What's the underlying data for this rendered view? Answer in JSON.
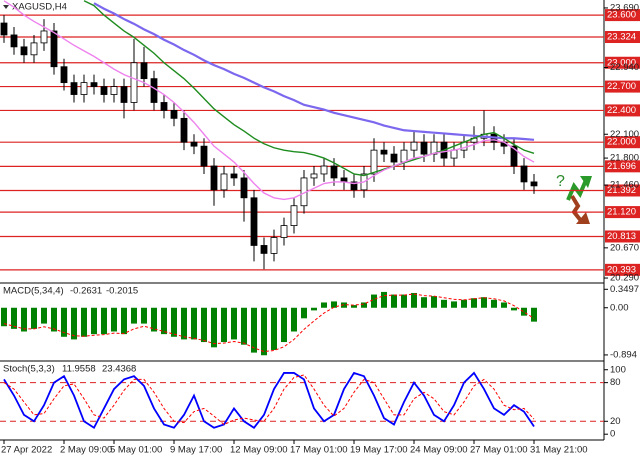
{
  "chart_data": [
    {
      "type": "candlestick",
      "title": "XAGUSD,H4",
      "categories": [
        "27 Apr 2022",
        null,
        null,
        null,
        null,
        null,
        "2 May 09:00",
        null,
        null,
        null,
        null,
        "5 May 01:00",
        null,
        null,
        null,
        null,
        null,
        "9 May 17:00",
        null,
        null,
        null,
        null,
        null,
        "12 May 09:00",
        null,
        null,
        null,
        null,
        null,
        "17 May 01:00",
        null,
        null,
        null,
        null,
        null,
        "19 May 17:00",
        null,
        null,
        null,
        null,
        null,
        "24 May 09:00",
        null,
        null,
        null,
        null,
        null,
        "27 May 01:00",
        null,
        null,
        null,
        null,
        null,
        "31 May 21:00"
      ],
      "open": [
        23.5,
        23.35,
        23.2,
        23.1,
        23.25,
        23.4,
        22.95,
        22.75,
        22.6,
        22.75,
        22.7,
        22.6,
        22.7,
        22.5,
        23.0,
        22.8,
        22.5,
        22.4,
        22.3,
        22.0,
        21.95,
        21.7,
        21.4,
        21.6,
        21.55,
        21.3,
        20.7,
        20.6,
        20.8,
        20.95,
        21.2,
        21.55,
        21.6,
        21.7,
        21.55,
        21.5,
        21.4,
        21.6,
        21.9,
        21.85,
        21.75,
        21.9,
        22.0,
        21.85,
        22.0,
        21.8,
        21.9,
        22.0,
        22.05,
        22.1,
        22.0,
        21.95,
        21.7,
        21.5
      ],
      "high": [
        23.6,
        23.45,
        23.3,
        23.35,
        23.55,
        23.5,
        23.05,
        22.85,
        22.85,
        22.85,
        22.8,
        22.8,
        22.8,
        23.3,
        23.2,
        22.9,
        22.6,
        22.5,
        22.4,
        22.1,
        22.05,
        21.8,
        21.7,
        21.7,
        21.65,
        21.4,
        20.8,
        20.9,
        21.05,
        21.3,
        21.65,
        21.7,
        21.8,
        21.8,
        21.65,
        21.6,
        21.7,
        22.05,
        22.0,
        21.95,
        22.0,
        22.15,
        22.1,
        22.1,
        22.1,
        22.0,
        22.1,
        22.2,
        22.4,
        22.2,
        22.1,
        22.05,
        21.8,
        21.6
      ],
      "low": [
        23.25,
        23.1,
        23.0,
        23.0,
        23.15,
        22.85,
        22.65,
        22.5,
        22.5,
        22.6,
        22.5,
        22.5,
        22.3,
        22.4,
        22.7,
        22.4,
        22.3,
        22.2,
        21.9,
        21.85,
        21.6,
        21.2,
        21.3,
        21.45,
        21.0,
        20.5,
        20.4,
        20.5,
        20.7,
        20.85,
        21.1,
        21.45,
        21.5,
        21.45,
        21.4,
        21.3,
        21.3,
        21.5,
        21.75,
        21.65,
        21.65,
        21.8,
        21.75,
        21.75,
        21.7,
        21.7,
        21.8,
        21.9,
        21.95,
        21.9,
        21.85,
        21.6,
        21.4,
        21.35
      ],
      "close": [
        23.35,
        23.2,
        23.1,
        23.25,
        23.4,
        22.95,
        22.75,
        22.6,
        22.75,
        22.7,
        22.6,
        22.7,
        22.5,
        23.0,
        22.8,
        22.5,
        22.4,
        22.3,
        22.0,
        21.95,
        21.7,
        21.4,
        21.6,
        21.55,
        21.3,
        20.7,
        20.6,
        20.8,
        20.95,
        21.2,
        21.55,
        21.6,
        21.7,
        21.55,
        21.5,
        21.4,
        21.6,
        21.9,
        21.85,
        21.75,
        21.9,
        22.0,
        21.85,
        22.0,
        21.8,
        21.9,
        22.0,
        22.05,
        22.1,
        22.0,
        21.95,
        21.7,
        21.5,
        21.45
      ],
      "up_color": "#ffffff",
      "down_color": "#000000",
      "overlays": [
        {
          "color": "#7b68ee",
          "values": [
            null,
            null,
            null,
            null,
            null,
            null,
            null,
            null,
            null,
            23.75,
            23.68,
            23.62,
            23.55,
            23.49,
            23.42,
            23.36,
            23.29,
            23.23,
            23.16,
            23.1,
            23.03,
            22.97,
            22.92,
            22.86,
            22.81,
            22.75,
            22.69,
            22.64,
            22.58,
            22.53,
            22.47,
            22.44,
            22.41,
            22.37,
            22.34,
            22.31,
            22.28,
            22.25,
            22.21,
            22.18,
            22.15,
            22.14,
            22.13,
            22.12,
            22.11,
            22.1,
            22.09,
            22.08,
            22.07,
            22.06,
            22.05,
            22.05,
            22.04,
            22.03
          ]
        },
        {
          "color": "#1e8c1e",
          "values": [
            null,
            null,
            null,
            null,
            null,
            null,
            null,
            null,
            23.78,
            23.72,
            23.6,
            23.5,
            23.4,
            23.32,
            23.22,
            23.12,
            23.0,
            22.9,
            22.8,
            22.68,
            22.55,
            22.42,
            22.32,
            22.22,
            22.14,
            22.05,
            21.98,
            21.93,
            21.9,
            21.88,
            21.87,
            21.84,
            21.8,
            21.74,
            21.67,
            21.6,
            21.58,
            21.62,
            21.66,
            21.7,
            21.74,
            21.78,
            21.82,
            21.86,
            21.9,
            21.95,
            22.0,
            22.05,
            22.1,
            22.12,
            22.05,
            21.97,
            21.9,
            21.86
          ]
        },
        {
          "color": "#ee82ee",
          "values": [
            23.78,
            23.7,
            23.6,
            23.52,
            23.45,
            23.38,
            23.3,
            23.22,
            23.15,
            23.08,
            23.0,
            22.92,
            22.85,
            22.8,
            22.75,
            22.68,
            22.6,
            22.5,
            22.38,
            22.25,
            22.1,
            21.95,
            21.85,
            21.75,
            21.62,
            21.48,
            21.36,
            21.3,
            21.28,
            21.3,
            21.36,
            21.42,
            21.48,
            21.5,
            21.5,
            21.48,
            21.5,
            21.58,
            21.65,
            21.7,
            21.75,
            21.8,
            21.82,
            21.86,
            21.88,
            21.9,
            21.93,
            21.97,
            22.02,
            22.03,
            22.0,
            21.92,
            21.82,
            21.75
          ]
        }
      ],
      "level_color": "#dd2222",
      "levels": [
        {
          "value": 23.6,
          "label": "23.600"
        },
        {
          "value": 23.324,
          "label": "23.324"
        },
        {
          "value": 23.0,
          "label": "23.000"
        },
        {
          "value": 22.7,
          "label": "22.700"
        },
        {
          "value": 22.4,
          "label": "22.400"
        },
        {
          "value": 22.0,
          "label": "22.000"
        },
        {
          "value": 21.696,
          "label": "21.696"
        },
        {
          "value": 21.392,
          "label": "21.392"
        },
        {
          "value": 21.12,
          "label": "21.120"
        },
        {
          "value": 20.813,
          "label": "20.813"
        },
        {
          "value": 20.393,
          "label": "20.393"
        }
      ],
      "ylim": [
        20.24,
        23.79
      ],
      "yticks": [
        {
          "value": 23.69,
          "label": "23.690"
        },
        {
          "value": 22.94,
          "label": "22.940"
        },
        {
          "value": 22.1,
          "label": "22.100"
        },
        {
          "value": 21.8,
          "label": "21.800"
        },
        {
          "value": 21.46,
          "label": "21.460"
        },
        {
          "value": 20.67,
          "label": "20.670"
        },
        {
          "value": 20.29,
          "label": "20.290"
        }
      ]
    },
    {
      "type": "bar",
      "title": "MACD(5,34,4)",
      "color": "#008000",
      "values": [
        -0.35,
        -0.4,
        -0.45,
        -0.4,
        -0.3,
        -0.45,
        -0.55,
        -0.6,
        -0.55,
        -0.5,
        -0.5,
        -0.45,
        -0.5,
        -0.3,
        -0.3,
        -0.45,
        -0.5,
        -0.55,
        -0.6,
        -0.6,
        -0.65,
        -0.75,
        -0.65,
        -0.6,
        -0.7,
        -0.85,
        -0.9,
        -0.8,
        -0.65,
        -0.45,
        -0.2,
        -0.05,
        0.1,
        0.12,
        0.1,
        0.05,
        0.1,
        0.25,
        0.3,
        0.25,
        0.25,
        0.28,
        0.2,
        0.22,
        0.15,
        0.12,
        0.15,
        0.18,
        0.2,
        0.15,
        0.1,
        -0.05,
        -0.15,
        -0.2631
      ],
      "signal": {
        "color": "#ff0000",
        "values": [
          -0.3,
          -0.35,
          -0.4,
          -0.4,
          -0.36,
          -0.4,
          -0.47,
          -0.53,
          -0.54,
          -0.52,
          -0.51,
          -0.48,
          -0.49,
          -0.4,
          -0.35,
          -0.4,
          -0.45,
          -0.5,
          -0.55,
          -0.58,
          -0.62,
          -0.68,
          -0.67,
          -0.64,
          -0.67,
          -0.76,
          -0.83,
          -0.81,
          -0.74,
          -0.6,
          -0.41,
          -0.25,
          -0.1,
          0.01,
          0.06,
          0.05,
          0.07,
          0.16,
          0.23,
          0.24,
          0.24,
          0.26,
          0.23,
          0.22,
          0.19,
          0.16,
          0.15,
          0.17,
          0.19,
          0.17,
          0.13,
          0.04,
          -0.08,
          -0.2015
        ]
      },
      "ylim": [
        -0.99,
        0.45
      ],
      "yticks": [
        0.3497,
        {
          "value": 0,
          "label": "0.00"
        },
        -0.894
      ]
    },
    {
      "type": "line",
      "title": "Stoch(5,3,3)",
      "series": [
        {
          "color": "#0000ff",
          "values": [
            85,
            60,
            30,
            20,
            45,
            80,
            90,
            60,
            20,
            10,
            40,
            70,
            85,
            90,
            75,
            40,
            15,
            10,
            30,
            60,
            20,
            10,
            15,
            40,
            20,
            10,
            30,
            70,
            95,
            95,
            85,
            40,
            20,
            30,
            70,
            95,
            90,
            60,
            25,
            15,
            50,
            80,
            60,
            30,
            20,
            45,
            80,
            95,
            70,
            40,
            30,
            45,
            35,
            11.9558
          ]
        },
        {
          "color": "#ff0000",
          "dashed": true,
          "values": [
            80,
            70,
            50,
            30,
            32,
            55,
            75,
            78,
            55,
            30,
            25,
            45,
            68,
            85,
            85,
            65,
            40,
            20,
            18,
            35,
            40,
            28,
            15,
            22,
            25,
            22,
            20,
            40,
            70,
            88,
            92,
            70,
            45,
            28,
            40,
            65,
            85,
            80,
            55,
            30,
            30,
            55,
            65,
            55,
            35,
            30,
            50,
            75,
            85,
            70,
            45,
            38,
            40,
            23.4368
          ]
        }
      ],
      "levels": [
        80,
        20
      ],
      "level_color": "#dd2222",
      "ylim": [
        -9,
        112
      ],
      "yticks": [
        100,
        80,
        20,
        0
      ]
    }
  ]
}
